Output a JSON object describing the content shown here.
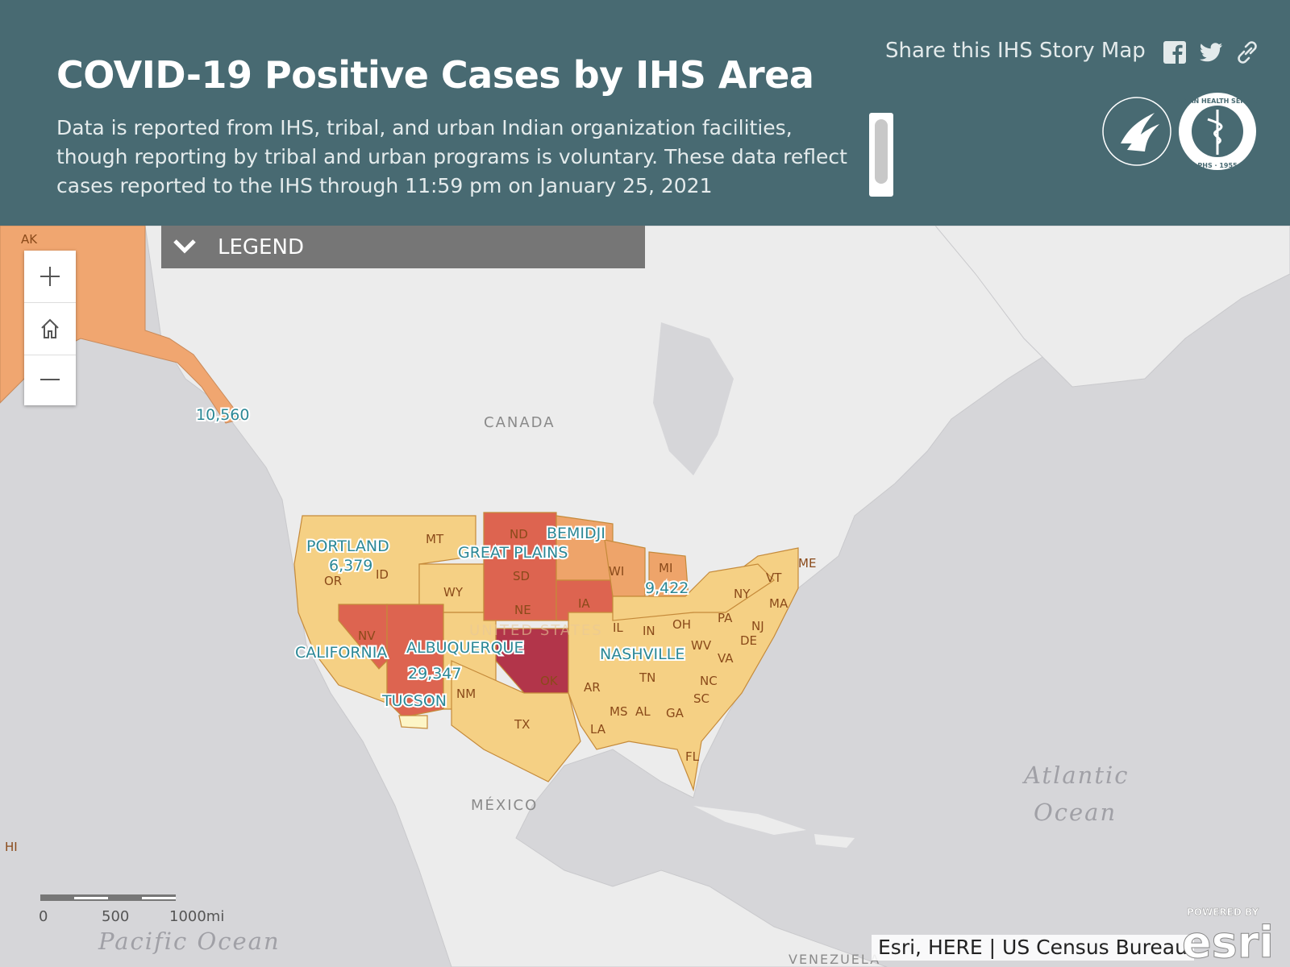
{
  "header": {
    "title": "COVID-19 Positive Cases by IHS Area",
    "description": "Data is reported from IHS, tribal, and urban Indian organization facilities, though reporting by tribal and urban programs is voluntary. These data reflect cases reported to the IHS through 11:59 pm on January 25, 2021",
    "share_label": "Share this IHS Story Map",
    "share_icons": [
      "facebook-icon",
      "twitter-icon",
      "link-icon"
    ],
    "seal_text": "INDIAN HEALTH SERVICE",
    "seal_year": "PHS · 1955"
  },
  "legend": {
    "label": "LEGEND",
    "icon": "chevron-down-icon"
  },
  "zoom": {
    "in_icon": "plus-icon",
    "home_icon": "home-icon",
    "out_icon": "minus-icon"
  },
  "map": {
    "country_labels": [
      "CANADA",
      "MÉXICO",
      "UNITED STATES",
      "VENEZUELA"
    ],
    "ocean_labels": {
      "pacific": "Pacific Ocean",
      "atlantic_1": "Atlantic",
      "atlantic_2": "Ocean"
    },
    "area_labels": {
      "portland": "PORTLAND",
      "bemidji": "BEMIDJI",
      "great_plains": "GREAT PLAINS",
      "california": "CALIFORNIA",
      "albuquerque": "ALBUQUERQUE",
      "tucson": "TUCSON",
      "nashville": "NASHVILLE"
    },
    "case_counts": {
      "alaska": "10,560",
      "portland": "6,379",
      "bemidji": "9,422",
      "albuquerque": "29,347"
    },
    "state_labels": [
      "AK",
      "HI",
      "MT",
      "ND",
      "SD",
      "NE",
      "IA",
      "WI",
      "MI",
      "NY",
      "ME",
      "VT",
      "MA",
      "NJ",
      "DE",
      "PA",
      "OH",
      "IN",
      "IL",
      "WV",
      "VA",
      "NC",
      "SC",
      "TN",
      "AR",
      "MS",
      "AL",
      "GA",
      "LA",
      "TX",
      "OK",
      "NM",
      "NV",
      "OR",
      "ID",
      "WY",
      "FL"
    ],
    "colors": {
      "light": "#f5d084",
      "medium": "#eea46a",
      "red": "#dd6450",
      "dark": "#b2354a",
      "alaska": "#f0a670",
      "land": "#ececec",
      "water": "#d6d6d9"
    }
  },
  "scale": {
    "labels": [
      "0",
      "500",
      "1000mi"
    ]
  },
  "attribution": "Esri, HERE | US Census Bureau",
  "esri": {
    "powered": "POWERED BY",
    "name": "esri"
  }
}
